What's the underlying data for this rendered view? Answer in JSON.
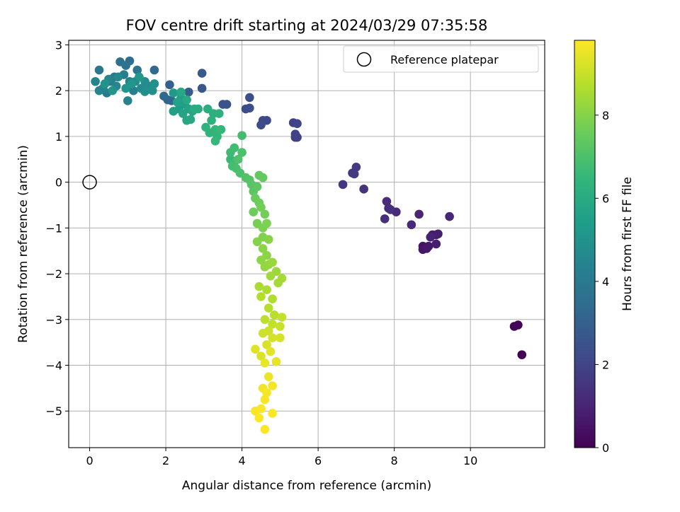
{
  "chart_data": {
    "type": "scatter",
    "title": "FOV centre drift starting at 2024/03/29 07:35:58",
    "xlabel": "Angular distance from reference (arcmin)",
    "ylabel": "Rotation from reference (arcmin)",
    "xlim": [
      -0.55,
      11.95
    ],
    "ylim": [
      -5.8,
      3.1
    ],
    "xticks": [
      0,
      2,
      4,
      6,
      8,
      10
    ],
    "yticks": [
      3,
      2,
      1,
      0,
      -1,
      -2,
      -3,
      -4,
      -5
    ],
    "grid": true,
    "legend": {
      "position": "top-right",
      "entries": [
        "Reference platepar"
      ]
    },
    "reference_point": {
      "x": 0,
      "y": 0,
      "label": "Reference platepar"
    },
    "colorbar": {
      "label": "Hours from first FF file",
      "range": [
        0,
        9.8
      ],
      "ticks": [
        0,
        2,
        4,
        6,
        8
      ],
      "colormap": "viridis"
    },
    "series": [
      {
        "points": [
          [
            11.35,
            -3.77,
            0.0
          ],
          [
            11.15,
            -3.15,
            0.1
          ],
          [
            11.25,
            -3.12,
            0.15
          ],
          [
            8.75,
            -1.4,
            0.5
          ],
          [
            8.75,
            -1.47,
            0.55
          ],
          [
            8.85,
            -1.45,
            0.6
          ],
          [
            8.9,
            -1.4,
            0.65
          ],
          [
            9.0,
            -1.15,
            0.7
          ],
          [
            9.1,
            -1.15,
            0.75
          ],
          [
            9.15,
            -1.13,
            0.8
          ],
          [
            9.1,
            -1.35,
            0.85
          ],
          [
            8.95,
            -1.2,
            0.9
          ],
          [
            8.65,
            -0.7,
            1.0
          ],
          [
            9.45,
            -0.75,
            1.05
          ],
          [
            8.45,
            -0.93,
            1.1
          ],
          [
            8.05,
            -0.65,
            1.15
          ],
          [
            7.85,
            -0.57,
            1.2
          ],
          [
            7.8,
            -0.42,
            1.25
          ],
          [
            7.9,
            -0.6,
            1.3
          ],
          [
            7.75,
            -0.8,
            1.35
          ],
          [
            7.2,
            -0.15,
            1.45
          ],
          [
            6.65,
            -0.05,
            1.55
          ],
          [
            6.9,
            0.2,
            1.6
          ],
          [
            7.0,
            0.33,
            1.65
          ],
          [
            6.95,
            0.18,
            1.7
          ],
          [
            5.4,
            0.98,
            1.8
          ],
          [
            5.45,
            0.98,
            1.85
          ],
          [
            5.4,
            1.05,
            1.9
          ],
          [
            5.35,
            1.3,
            2.0
          ],
          [
            5.45,
            1.28,
            2.05
          ],
          [
            4.55,
            1.35,
            2.1
          ],
          [
            4.65,
            1.35,
            2.15
          ],
          [
            4.5,
            1.25,
            2.2
          ],
          [
            4.1,
            1.6,
            2.3
          ],
          [
            4.2,
            1.62,
            2.35
          ],
          [
            4.2,
            1.85,
            2.4
          ],
          [
            3.6,
            1.7,
            2.5
          ],
          [
            3.5,
            1.7,
            2.55
          ],
          [
            2.95,
            2.05,
            2.65
          ],
          [
            2.95,
            2.38,
            2.75
          ],
          [
            2.6,
            1.97,
            2.85
          ],
          [
            2.1,
            2.13,
            2.95
          ],
          [
            2.05,
            1.8,
            3.1
          ],
          [
            2.15,
            1.78,
            3.2
          ],
          [
            1.95,
            1.88,
            3.3
          ],
          [
            1.7,
            2.45,
            3.4
          ],
          [
            1.05,
            2.65,
            3.5
          ],
          [
            0.8,
            2.63,
            3.6
          ],
          [
            0.95,
            2.55,
            3.7
          ],
          [
            1.25,
            2.45,
            3.8
          ],
          [
            0.25,
            2.45,
            3.9
          ],
          [
            0.45,
            1.95,
            4.0
          ],
          [
            0.55,
            2.2,
            4.05
          ],
          [
            0.65,
            2.3,
            4.1
          ],
          [
            0.9,
            2.35,
            4.15
          ],
          [
            1.05,
            2.2,
            4.2
          ],
          [
            1.15,
            2.0,
            4.25
          ],
          [
            1.0,
            1.78,
            4.3
          ],
          [
            0.35,
            2.05,
            4.35
          ],
          [
            0.15,
            2.2,
            4.4
          ],
          [
            0.25,
            2.0,
            4.45
          ],
          [
            0.5,
            2.25,
            4.5
          ],
          [
            0.7,
            2.1,
            4.55
          ],
          [
            0.75,
            2.3,
            4.6
          ],
          [
            1.2,
            2.2,
            4.65
          ],
          [
            1.35,
            2.05,
            4.7
          ],
          [
            1.45,
            2.2,
            4.75
          ],
          [
            1.55,
            2.1,
            4.8
          ],
          [
            1.45,
            1.98,
            4.85
          ],
          [
            1.65,
            2.0,
            4.9
          ],
          [
            1.7,
            2.15,
            4.95
          ],
          [
            0.4,
            2.15,
            5.0
          ],
          [
            0.6,
            2.0,
            5.05
          ],
          [
            0.95,
            2.05,
            5.1
          ],
          [
            1.1,
            2.15,
            5.15
          ],
          [
            1.3,
            2.3,
            5.2
          ],
          [
            2.2,
            1.95,
            5.3
          ],
          [
            2.35,
            1.6,
            5.4
          ],
          [
            2.4,
            1.85,
            5.45
          ],
          [
            2.5,
            1.7,
            5.5
          ],
          [
            2.2,
            1.55,
            5.55
          ],
          [
            2.3,
            1.75,
            5.6
          ],
          [
            2.6,
            1.6,
            5.65
          ],
          [
            2.45,
            1.5,
            5.7
          ],
          [
            2.7,
            1.55,
            5.75
          ],
          [
            2.55,
            1.35,
            5.8
          ],
          [
            2.65,
            1.37,
            5.85
          ],
          [
            2.4,
            1.97,
            5.9
          ],
          [
            2.55,
            1.8,
            5.95
          ],
          [
            2.75,
            1.6,
            6.0
          ],
          [
            2.85,
            1.6,
            6.05
          ],
          [
            3.1,
            1.6,
            6.1
          ],
          [
            3.25,
            1.5,
            6.15
          ],
          [
            3.2,
            1.35,
            6.2
          ],
          [
            3.4,
            1.5,
            6.25
          ],
          [
            3.05,
            1.2,
            6.3
          ],
          [
            3.15,
            1.08,
            6.35
          ],
          [
            3.3,
            1.15,
            6.4
          ],
          [
            3.35,
            1.0,
            6.45
          ],
          [
            3.45,
            1.15,
            6.5
          ],
          [
            3.3,
            0.9,
            6.55
          ],
          [
            3.7,
            0.5,
            6.6
          ],
          [
            3.8,
            0.45,
            6.65
          ],
          [
            3.7,
            0.65,
            6.7
          ],
          [
            3.8,
            0.75,
            6.75
          ],
          [
            4.0,
            1.02,
            6.8
          ],
          [
            3.75,
            0.35,
            6.85
          ],
          [
            3.85,
            0.3,
            6.9
          ],
          [
            3.95,
            0.2,
            6.95
          ],
          [
            4.0,
            0.65,
            7.0
          ],
          [
            3.9,
            0.5,
            7.05
          ],
          [
            4.1,
            0.1,
            7.1
          ],
          [
            4.2,
            0.05,
            7.15
          ],
          [
            4.25,
            -0.05,
            7.2
          ],
          [
            4.3,
            -0.2,
            7.3
          ],
          [
            4.4,
            -0.1,
            7.35
          ],
          [
            4.45,
            0.15,
            7.4
          ],
          [
            4.55,
            0.1,
            7.45
          ],
          [
            4.35,
            -0.35,
            7.5
          ],
          [
            4.45,
            -0.45,
            7.55
          ],
          [
            4.3,
            -0.65,
            7.6
          ],
          [
            4.5,
            -0.55,
            7.65
          ],
          [
            4.6,
            -0.7,
            7.7
          ],
          [
            4.4,
            -0.9,
            7.75
          ],
          [
            4.55,
            -1.0,
            7.8
          ],
          [
            4.65,
            -0.9,
            7.85
          ],
          [
            4.55,
            -1.2,
            7.9
          ],
          [
            4.4,
            -1.3,
            7.95
          ],
          [
            4.7,
            -1.25,
            8.0
          ],
          [
            4.55,
            -1.45,
            8.05
          ],
          [
            4.65,
            -1.6,
            8.1
          ],
          [
            4.5,
            -1.7,
            8.15
          ],
          [
            4.6,
            -1.85,
            8.2
          ],
          [
            4.7,
            -1.8,
            8.25
          ],
          [
            4.8,
            -1.75,
            8.3
          ],
          [
            4.9,
            -1.95,
            8.35
          ],
          [
            4.75,
            -2.05,
            8.4
          ],
          [
            4.95,
            -2.2,
            8.45
          ],
          [
            5.05,
            -2.1,
            8.5
          ],
          [
            4.45,
            -2.28,
            8.55
          ],
          [
            4.65,
            -2.35,
            8.6
          ],
          [
            4.8,
            -2.55,
            8.65
          ],
          [
            4.5,
            -2.5,
            8.7
          ],
          [
            4.7,
            -2.75,
            8.75
          ],
          [
            4.85,
            -2.9,
            8.8
          ],
          [
            4.6,
            -3.0,
            8.85
          ],
          [
            4.8,
            -3.1,
            8.9
          ],
          [
            5.05,
            -2.95,
            8.95
          ],
          [
            5.0,
            -3.15,
            9.0
          ],
          [
            4.7,
            -3.25,
            9.05
          ],
          [
            4.55,
            -3.3,
            9.1
          ],
          [
            4.8,
            -3.4,
            9.15
          ],
          [
            5.0,
            -3.4,
            9.2
          ],
          [
            4.65,
            -3.55,
            9.25
          ],
          [
            4.5,
            -3.8,
            9.3
          ],
          [
            4.35,
            -3.65,
            9.35
          ],
          [
            4.75,
            -3.7,
            9.4
          ],
          [
            4.9,
            -3.92,
            9.45
          ],
          [
            4.6,
            -3.95,
            9.5
          ],
          [
            4.7,
            -4.25,
            9.55
          ],
          [
            4.55,
            -4.5,
            9.6
          ],
          [
            4.8,
            -4.45,
            9.65
          ],
          [
            4.65,
            -4.6,
            9.68
          ],
          [
            4.6,
            -4.75,
            9.7
          ],
          [
            4.35,
            -5.0,
            9.72
          ],
          [
            4.5,
            -4.95,
            9.74
          ],
          [
            4.8,
            -5.05,
            9.76
          ],
          [
            4.45,
            -5.15,
            9.78
          ],
          [
            4.6,
            -5.4,
            9.8
          ]
        ]
      }
    ]
  }
}
